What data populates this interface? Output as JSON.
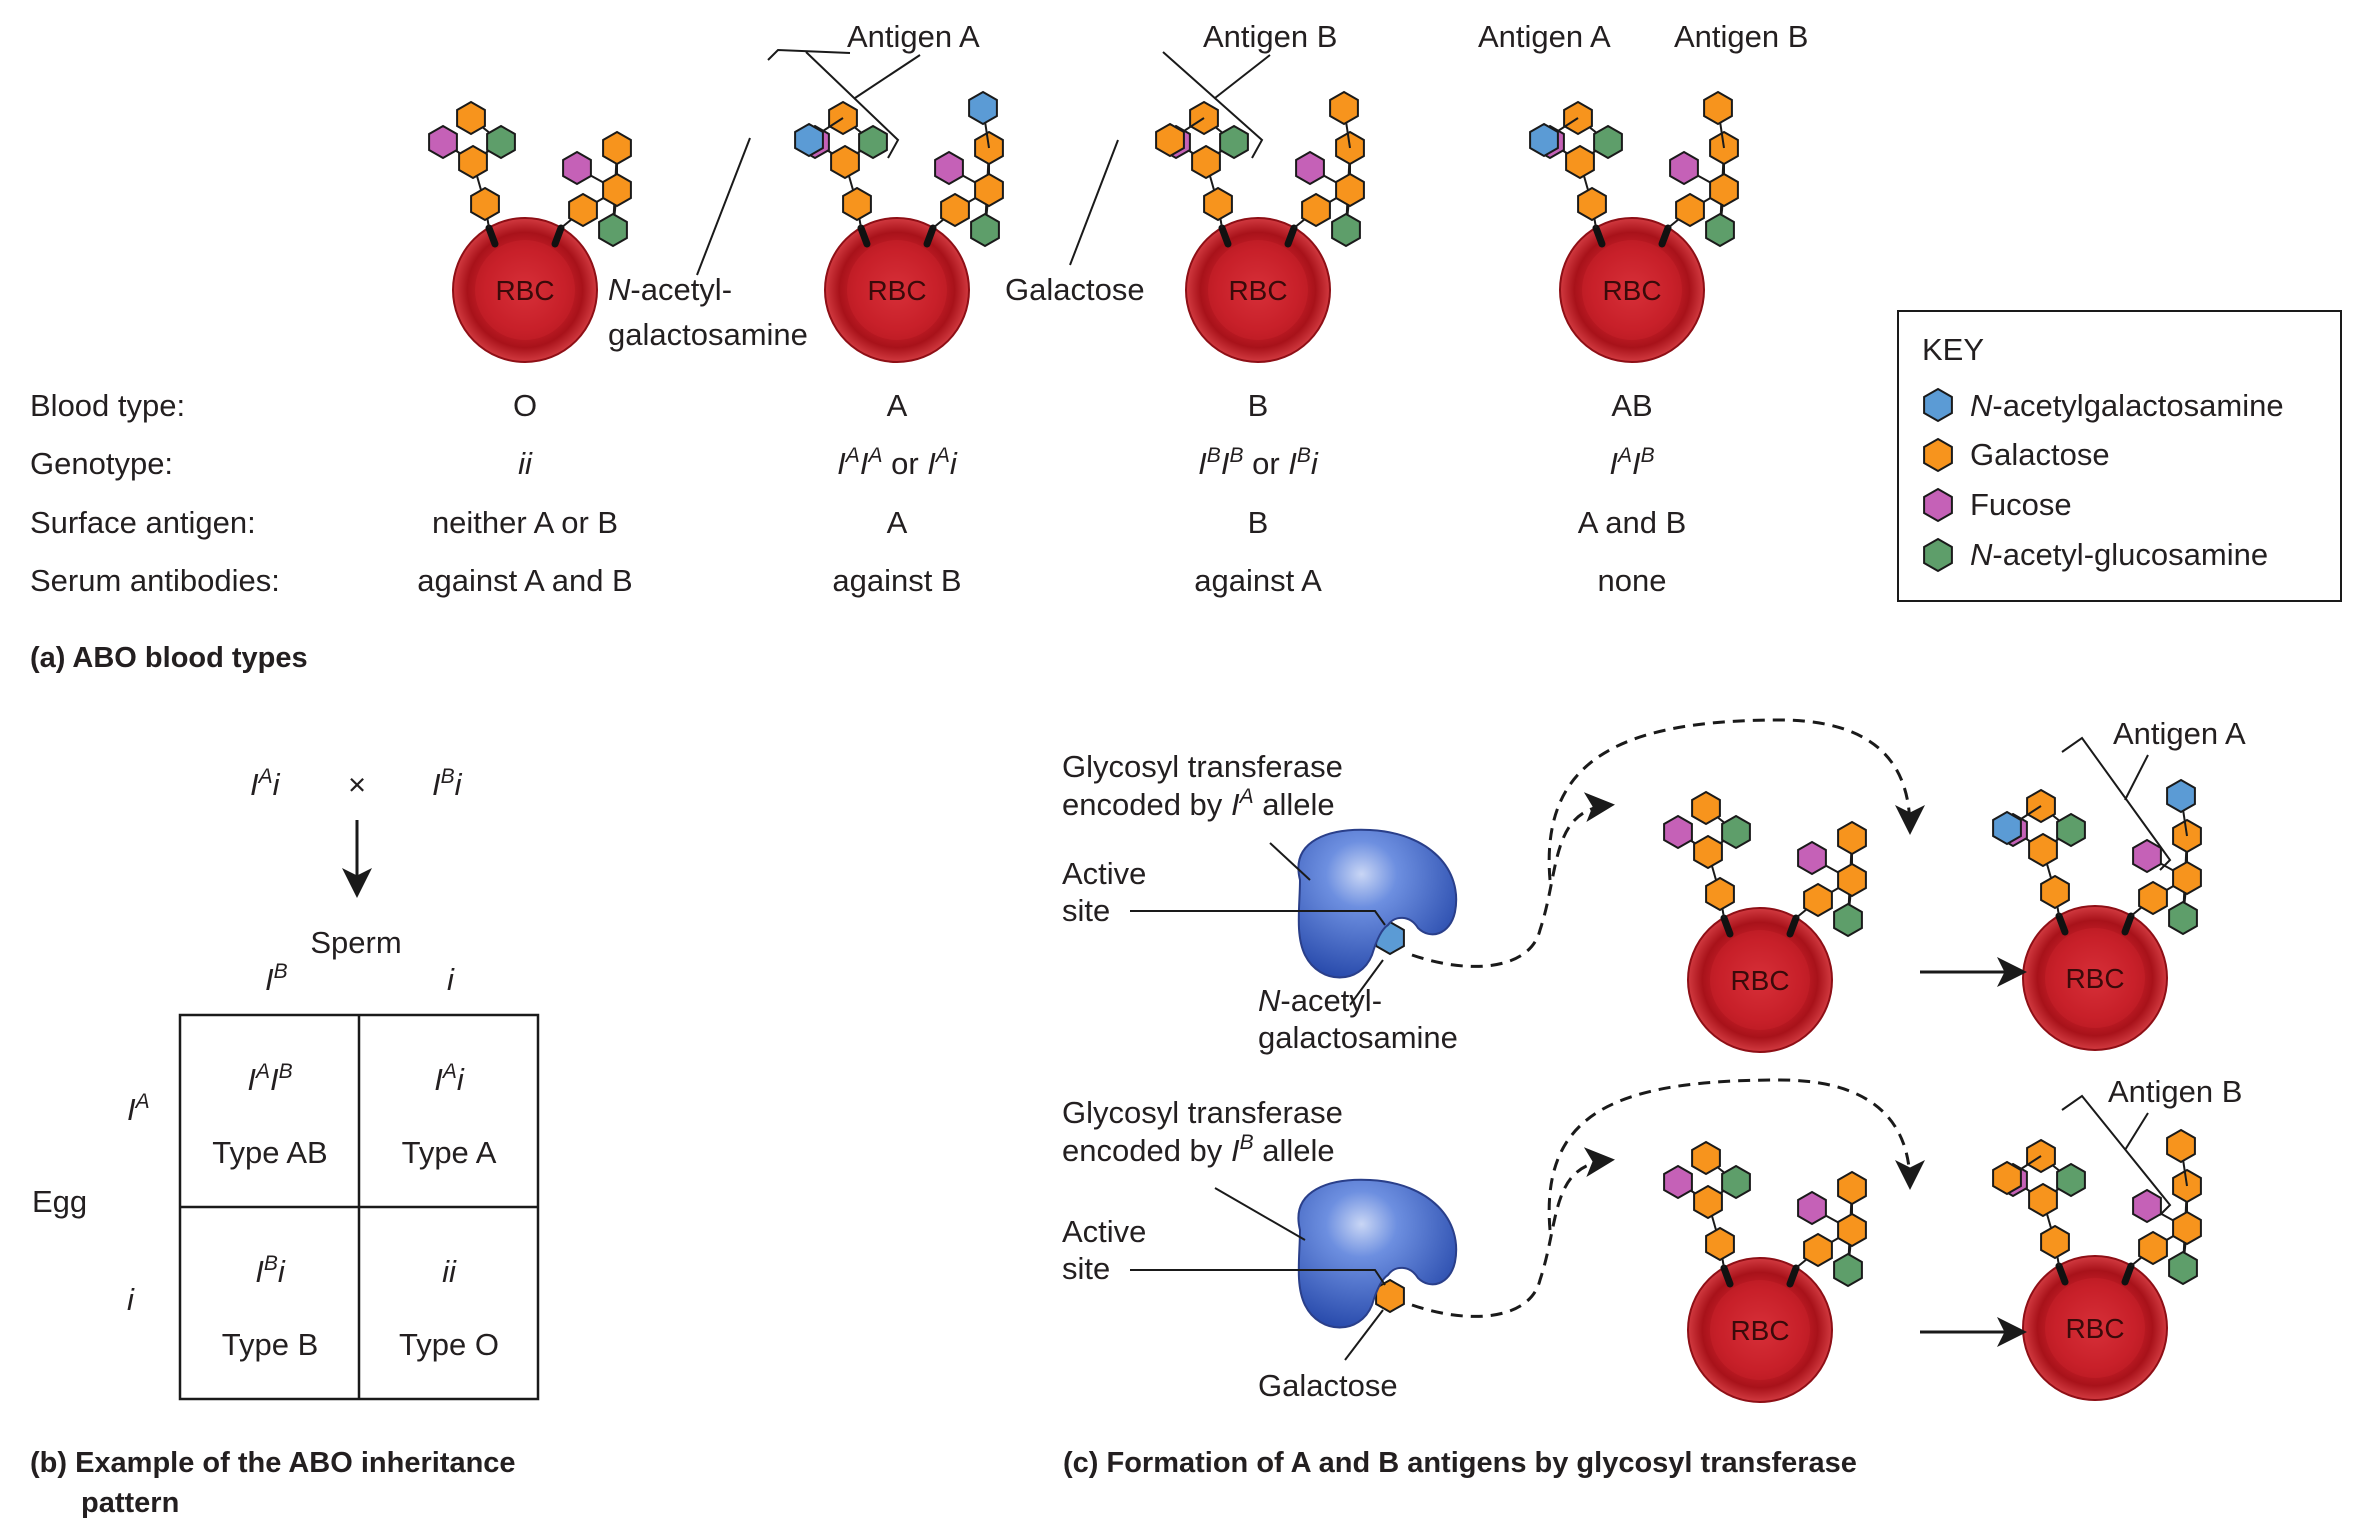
{
  "panel_a": {
    "caption": "(a) ABO blood types",
    "rbc_label": "RBC",
    "callouts": {
      "antigen_a": "Antigen A",
      "antigen_b": "Antigen B",
      "nacetyl_1": "N",
      "nacetyl_1b": "-acetyl-",
      "nacetyl_2": "galactosamine",
      "galactose": "Galactose"
    },
    "row_labels": {
      "blood_type": "Blood type:",
      "genotype": "Genotype:",
      "surface_antigen": "Surface antigen:",
      "serum_antibodies": "Serum antibodies:"
    },
    "columns": [
      {
        "blood_type": "O",
        "surface": "neither A or B",
        "antibodies": "against A and B"
      },
      {
        "blood_type": "A",
        "surface": "A",
        "antibodies": "against B"
      },
      {
        "blood_type": "B",
        "surface": "B",
        "antibodies": "against A"
      },
      {
        "blood_type": "AB",
        "surface": "A and B",
        "antibodies": "none"
      }
    ],
    "genotype_text": {
      "o": "ii",
      "a_or": "or",
      "b_or": "or",
      "I": "I",
      "i": "i",
      "A": "A",
      "B": "B"
    }
  },
  "key": {
    "title": "KEY",
    "items": [
      {
        "prefix": "N",
        "label": "-acetylgalactosamine",
        "color": "#5b9bd5"
      },
      {
        "prefix": "",
        "label": "Galactose",
        "color": "#f7941d"
      },
      {
        "prefix": "",
        "label": "Fucose",
        "color": "#c561b7"
      },
      {
        "prefix": "N",
        "label": "-acetyl-glucosamine",
        "color": "#5e9e6a"
      }
    ]
  },
  "panel_b": {
    "caption_line1": "(b) Example of the ABO inheritance",
    "caption_line2": "pattern",
    "cross_symbol": "×",
    "sperm": "Sperm",
    "egg": "Egg",
    "types": {
      "ab": "Type AB",
      "a": "Type A",
      "b": "Type B",
      "o": "Type O"
    },
    "cell_oo": "ii"
  },
  "panel_c": {
    "caption": "(c) Formation of A and B antigens by glycosyl transferase",
    "top": {
      "enzyme_line1": "Glycosyl transferase",
      "enzyme_line2": "encoded by",
      "allele_word": "allele",
      "allele_sup": "A",
      "active_1": "Active",
      "active_2": "site",
      "substrate_1a": "N",
      "substrate_1b": "-acetyl-",
      "substrate_2": "galactosamine",
      "antigen": "Antigen A"
    },
    "bottom": {
      "enzyme_line1": "Glycosyl transferase",
      "enzyme_line2": "encoded by",
      "allele_word": "allele",
      "allele_sup": "B",
      "active_1": "Active",
      "active_2": "site",
      "substrate": "Galactose",
      "antigen": "Antigen B"
    }
  },
  "colors": {
    "rbc": "#c8202a",
    "enzyme": "#3b63c4",
    "n_acetylgalactosamine": "#5b9bd5",
    "galactose": "#f7941d",
    "fucose": "#c561b7",
    "n_acetyl_glucosamine": "#5e9e6a"
  }
}
